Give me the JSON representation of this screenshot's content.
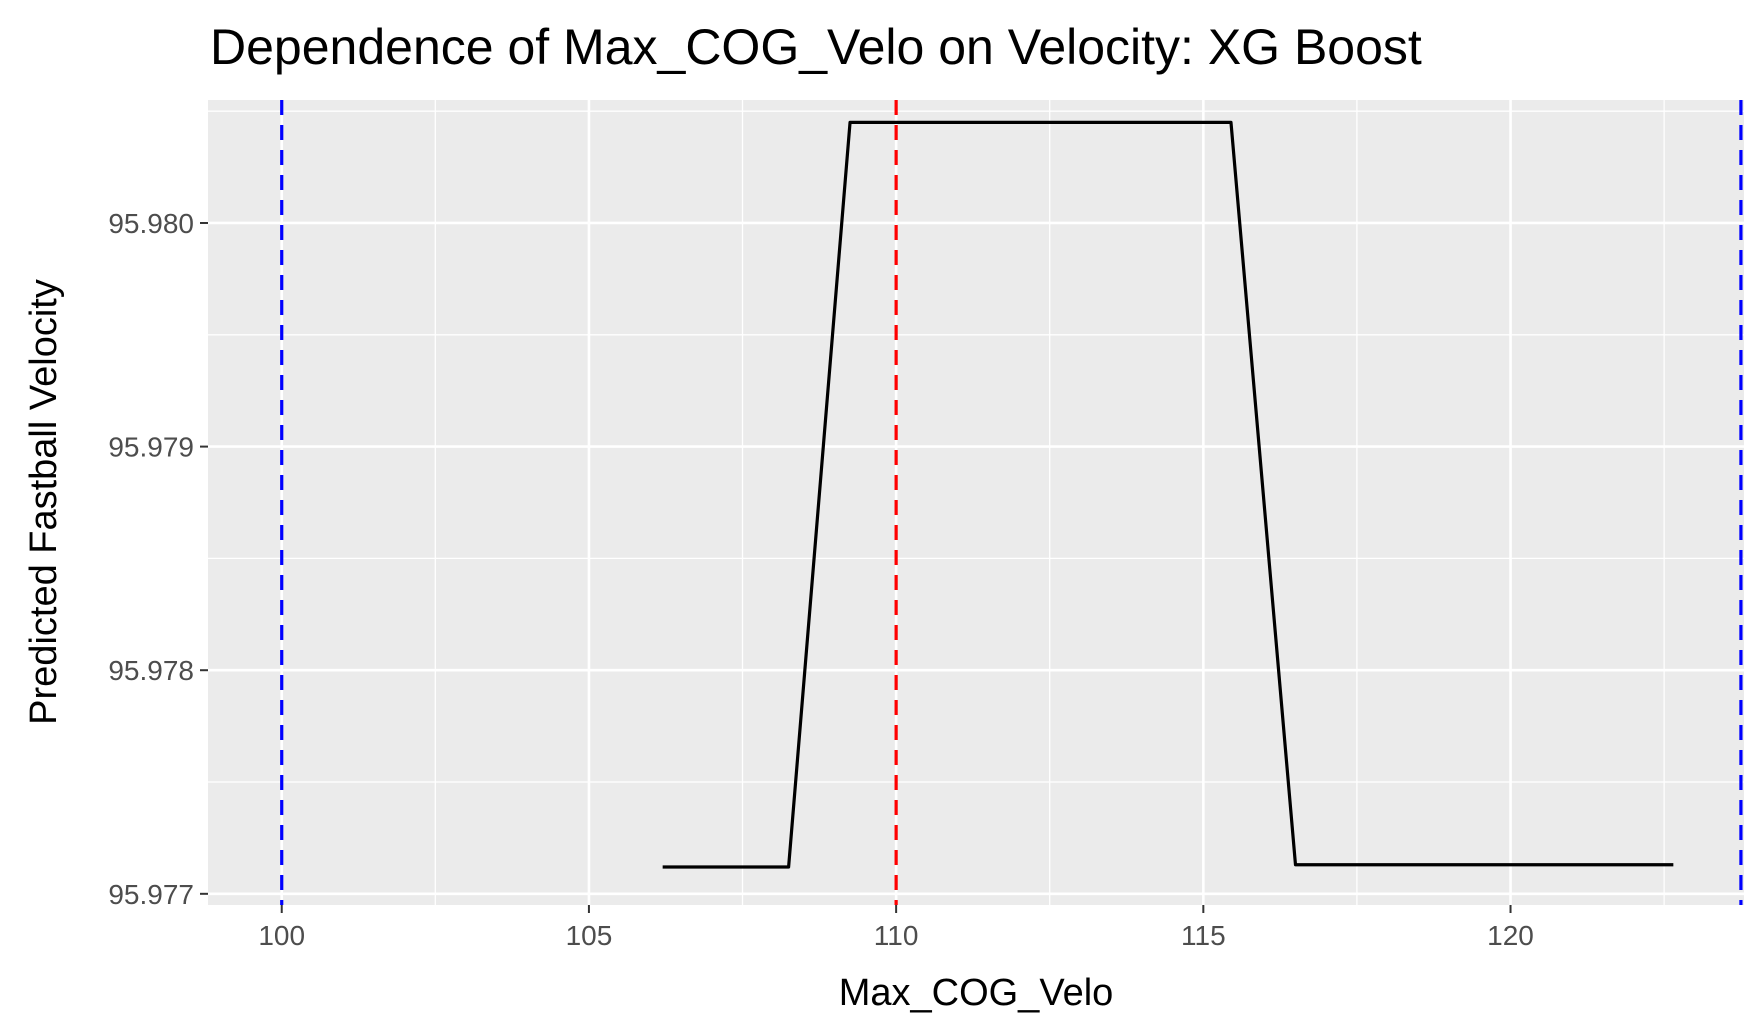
{
  "chart_data": {
    "type": "line",
    "title": "Dependence of Max_COG_Velo on Velocity: XG Boost",
    "xlabel": "Max_COG_Velo",
    "ylabel": "Predicted Fastball Velocity",
    "xlim": [
      98.8,
      123.8
    ],
    "ylim": [
      95.97695,
      95.98055
    ],
    "x_ticks": [
      100,
      105,
      110,
      115,
      120
    ],
    "x_tick_labels": [
      "100",
      "105",
      "110",
      "115",
      "120"
    ],
    "y_ticks": [
      95.977,
      95.978,
      95.979,
      95.98
    ],
    "y_tick_labels": [
      "95.977",
      "95.978",
      "95.979",
      "95.980"
    ],
    "grid": true,
    "panel_background": "#ebebeb",
    "series": [
      {
        "color": "#000000",
        "x": [
          106.2,
          108.25,
          109.25,
          115.45,
          116.5,
          122.65
        ],
        "y": [
          95.97712,
          95.97712,
          95.98045,
          95.98045,
          95.97713,
          95.97713
        ]
      }
    ],
    "vlines": [
      {
        "x": 100.0,
        "color": "#0000ff",
        "style": "dashed"
      },
      {
        "x": 110.0,
        "color": "#ff0000",
        "style": "dashed"
      },
      {
        "x": 123.75,
        "color": "#0000ff",
        "style": "dashed"
      }
    ]
  }
}
